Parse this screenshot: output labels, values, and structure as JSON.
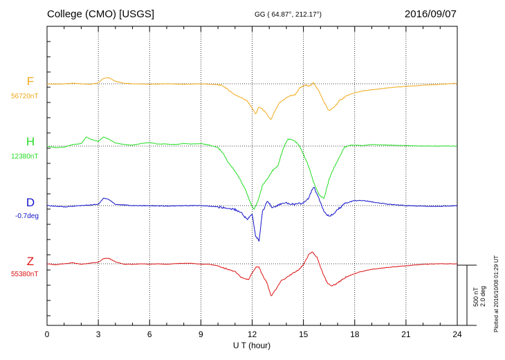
{
  "header": {
    "station": "College (CMO)  [USGS]",
    "coords": "GG ( 64.87°, 212.17°)",
    "date": "2016/09/07"
  },
  "axis": {
    "xlabel": "U T (hour)",
    "xticks": [
      "0",
      "3",
      "6",
      "9",
      "12",
      "15",
      "18",
      "21",
      "24"
    ]
  },
  "scale": {
    "nt": "500 nT",
    "deg": "2.0 deg"
  },
  "plotted": "Plotted at 2016/10/08 01:29 UT",
  "components": {
    "F": {
      "letter": "F",
      "base": "56720nT",
      "color": "#f0a818"
    },
    "H": {
      "letter": "H",
      "base": "12380nT",
      "color": "#22dd22"
    },
    "D": {
      "letter": "D",
      "base": "-0.7deg",
      "color": "#1111cc"
    },
    "Z": {
      "letter": "Z",
      "base": "55380nT",
      "color": "#dd1111"
    }
  },
  "chart_data": {
    "type": "line",
    "title": "College (CMO)  [USGS]",
    "xlabel": "U T (hour)",
    "ylabel": "",
    "xlim": [
      0,
      24
    ],
    "grid": true,
    "series": [
      {
        "name": "F",
        "unit": "nT",
        "baseline": 56720,
        "points": [
          [
            0,
            0
          ],
          [
            0.5,
            -5
          ],
          [
            1,
            0
          ],
          [
            1.5,
            5
          ],
          [
            2,
            0
          ],
          [
            2.5,
            -5
          ],
          [
            3,
            10
          ],
          [
            3.3,
            55
          ],
          [
            3.6,
            60
          ],
          [
            4,
            25
          ],
          [
            4.5,
            5
          ],
          [
            5,
            0
          ],
          [
            6,
            -5
          ],
          [
            7,
            0
          ],
          [
            8,
            -5
          ],
          [
            9,
            0
          ],
          [
            9.5,
            -5
          ],
          [
            10,
            -10
          ],
          [
            10.3,
            -20
          ],
          [
            10.6,
            -60
          ],
          [
            11,
            -110
          ],
          [
            11.3,
            -130
          ],
          [
            11.7,
            -170
          ],
          [
            12,
            -240
          ],
          [
            12.2,
            -300
          ],
          [
            12.4,
            -230
          ],
          [
            12.6,
            -250
          ],
          [
            12.9,
            -310
          ],
          [
            13.1,
            -360
          ],
          [
            13.3,
            -280
          ],
          [
            13.6,
            -190
          ],
          [
            13.9,
            -150
          ],
          [
            14.2,
            -120
          ],
          [
            14.5,
            -110
          ],
          [
            14.8,
            -40
          ],
          [
            15.1,
            -15
          ],
          [
            15.4,
            -20
          ],
          [
            15.6,
            10
          ],
          [
            15.9,
            -70
          ],
          [
            16.2,
            -180
          ],
          [
            16.5,
            -270
          ],
          [
            16.8,
            -230
          ],
          [
            17.1,
            -170
          ],
          [
            17.5,
            -120
          ],
          [
            18,
            -90
          ],
          [
            18.5,
            -70
          ],
          [
            19,
            -60
          ],
          [
            20,
            -40
          ],
          [
            21,
            -25
          ],
          [
            22,
            -15
          ],
          [
            23,
            -5
          ],
          [
            24,
            5
          ]
        ]
      },
      {
        "name": "H",
        "unit": "nT",
        "baseline": 12380,
        "points": [
          [
            0,
            0
          ],
          [
            0.5,
            -15
          ],
          [
            1,
            -10
          ],
          [
            1.5,
            15
          ],
          [
            2,
            25
          ],
          [
            2.3,
            90
          ],
          [
            2.6,
            65
          ],
          [
            3,
            45
          ],
          [
            3.3,
            90
          ],
          [
            3.6,
            70
          ],
          [
            4,
            30
          ],
          [
            4.5,
            15
          ],
          [
            5,
            10
          ],
          [
            5.5,
            25
          ],
          [
            6,
            35
          ],
          [
            6.5,
            20
          ],
          [
            7,
            20
          ],
          [
            7.5,
            15
          ],
          [
            8,
            25
          ],
          [
            8.5,
            20
          ],
          [
            9,
            25
          ],
          [
            9.5,
            10
          ],
          [
            10,
            -15
          ],
          [
            10.3,
            -70
          ],
          [
            10.6,
            -160
          ],
          [
            11,
            -250
          ],
          [
            11.3,
            -330
          ],
          [
            11.6,
            -430
          ],
          [
            11.9,
            -560
          ],
          [
            12.1,
            -630
          ],
          [
            12.3,
            -560
          ],
          [
            12.6,
            -390
          ],
          [
            12.9,
            -320
          ],
          [
            13.2,
            -240
          ],
          [
            13.5,
            -200
          ],
          [
            13.8,
            -30
          ],
          [
            14.1,
            70
          ],
          [
            14.4,
            60
          ],
          [
            14.7,
            20
          ],
          [
            15,
            -80
          ],
          [
            15.3,
            -200
          ],
          [
            15.6,
            -360
          ],
          [
            15.9,
            -480
          ],
          [
            16.2,
            -520
          ],
          [
            16.5,
            -330
          ],
          [
            16.8,
            -210
          ],
          [
            17.1,
            -110
          ],
          [
            17.4,
            -10
          ],
          [
            17.8,
            10
          ],
          [
            18.5,
            5
          ],
          [
            19,
            15
          ],
          [
            20,
            10
          ],
          [
            21,
            5
          ],
          [
            22,
            0
          ],
          [
            23,
            0
          ],
          [
            24,
            0
          ]
        ]
      },
      {
        "name": "D",
        "unit": "deg",
        "baseline": -0.7,
        "points": [
          [
            0,
            0
          ],
          [
            1,
            -0.05
          ],
          [
            2,
            0
          ],
          [
            3,
            0.05
          ],
          [
            3.3,
            0.3
          ],
          [
            3.6,
            0.25
          ],
          [
            4,
            0.05
          ],
          [
            5,
            0
          ],
          [
            6,
            0
          ],
          [
            7,
            -0.02
          ],
          [
            8,
            0
          ],
          [
            9,
            0
          ],
          [
            10,
            -0.05
          ],
          [
            10.5,
            -0.1
          ],
          [
            11,
            -0.15
          ],
          [
            11.4,
            -0.3
          ],
          [
            11.7,
            -0.55
          ],
          [
            12,
            -0.35
          ],
          [
            12.2,
            -1.2
          ],
          [
            12.4,
            -1.4
          ],
          [
            12.6,
            -0.25
          ],
          [
            12.9,
            0.2
          ],
          [
            13.2,
            -0.1
          ],
          [
            13.6,
            0.05
          ],
          [
            14,
            0.1
          ],
          [
            14.5,
            0.05
          ],
          [
            15,
            0.1
          ],
          [
            15.3,
            0.3
          ],
          [
            15.6,
            0.75
          ],
          [
            15.9,
            0.3
          ],
          [
            16.2,
            -0.2
          ],
          [
            16.5,
            -0.45
          ],
          [
            16.8,
            -0.3
          ],
          [
            17.1,
            -0.1
          ],
          [
            17.5,
            0.1
          ],
          [
            18,
            0.2
          ],
          [
            18.5,
            0.2
          ],
          [
            19,
            0.15
          ],
          [
            20,
            0.05
          ],
          [
            21,
            0
          ],
          [
            22,
            -0.02
          ],
          [
            23,
            -0.03
          ],
          [
            24,
            0
          ]
        ]
      },
      {
        "name": "Z",
        "unit": "nT",
        "baseline": 55380,
        "points": [
          [
            0,
            0
          ],
          [
            0.5,
            -10
          ],
          [
            1,
            0
          ],
          [
            1.5,
            10
          ],
          [
            2,
            -5
          ],
          [
            2.5,
            5
          ],
          [
            3,
            15
          ],
          [
            3.3,
            50
          ],
          [
            3.6,
            55
          ],
          [
            4,
            20
          ],
          [
            4.5,
            -5
          ],
          [
            5,
            -5
          ],
          [
            5.5,
            0
          ],
          [
            6,
            -5
          ],
          [
            6.5,
            0
          ],
          [
            7,
            -5
          ],
          [
            7.5,
            0
          ],
          [
            8,
            5
          ],
          [
            8.5,
            5
          ],
          [
            9,
            -5
          ],
          [
            9.5,
            -5
          ],
          [
            10,
            -20
          ],
          [
            10.3,
            -40
          ],
          [
            10.6,
            -55
          ],
          [
            11,
            -80
          ],
          [
            11.4,
            -140
          ],
          [
            11.8,
            -160
          ],
          [
            12,
            -90
          ],
          [
            12.2,
            -35
          ],
          [
            12.4,
            -30
          ],
          [
            12.6,
            -110
          ],
          [
            12.9,
            -200
          ],
          [
            13.1,
            -320
          ],
          [
            13.4,
            -250
          ],
          [
            13.7,
            -170
          ],
          [
            14,
            -140
          ],
          [
            14.4,
            -90
          ],
          [
            14.7,
            -60
          ],
          [
            15,
            -10
          ],
          [
            15.3,
            90
          ],
          [
            15.5,
            120
          ],
          [
            15.8,
            60
          ],
          [
            16.1,
            -80
          ],
          [
            16.4,
            -190
          ],
          [
            16.7,
            -220
          ],
          [
            17,
            -190
          ],
          [
            17.4,
            -140
          ],
          [
            17.8,
            -110
          ],
          [
            18.3,
            -80
          ],
          [
            19,
            -55
          ],
          [
            20,
            -35
          ],
          [
            21,
            -20
          ],
          [
            22,
            -5
          ],
          [
            23,
            0
          ],
          [
            24,
            0
          ]
        ]
      }
    ]
  }
}
